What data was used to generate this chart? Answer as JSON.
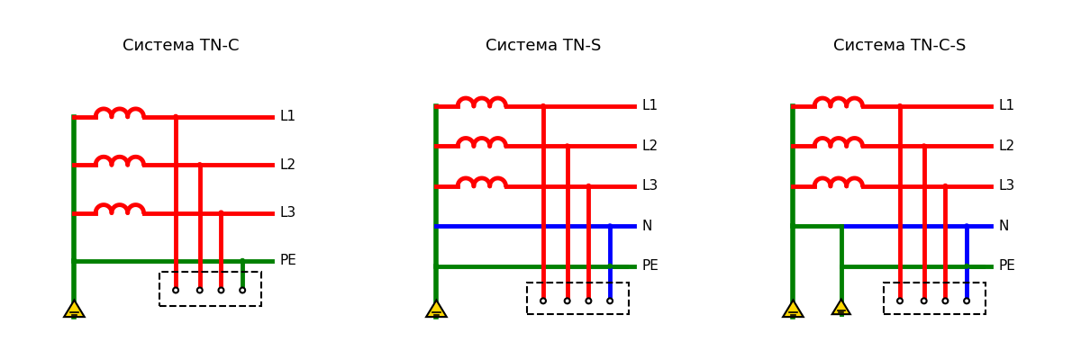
{
  "title_tnc": "Система TN-C",
  "title_tns": "Система TN-S",
  "title_tncs": "Система TN-C-S",
  "red": "#FF0000",
  "green": "#008000",
  "blue": "#0000FF",
  "black": "#000000",
  "bg": "#FFFFFF",
  "line_width": 3.5,
  "coil_lw": 3.5,
  "title_fontsize": 13
}
